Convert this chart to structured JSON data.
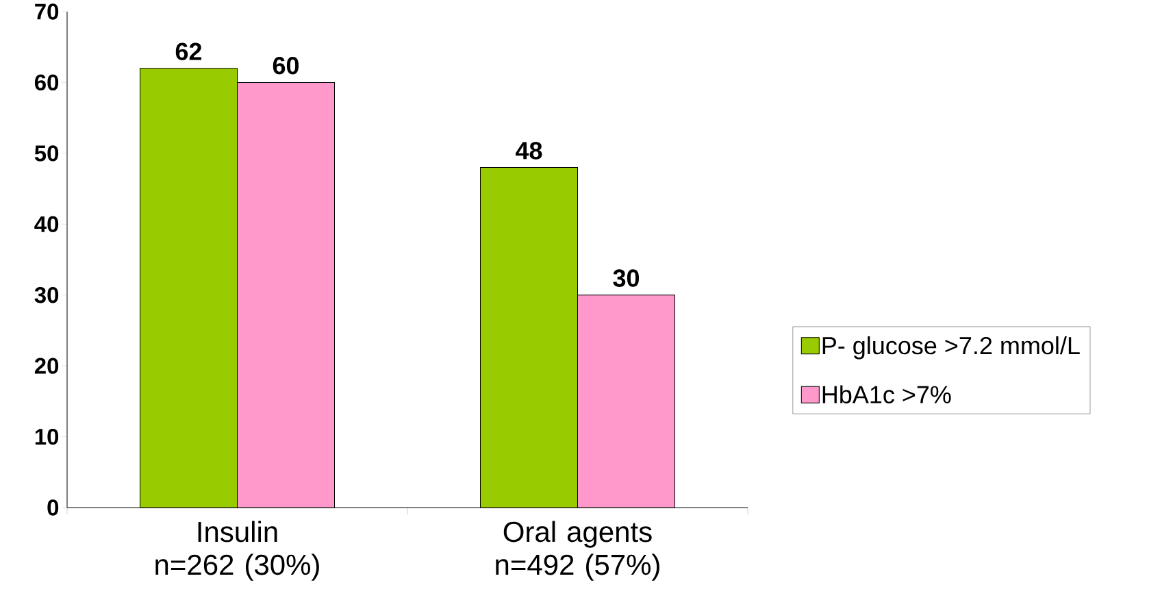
{
  "chart_data": {
    "type": "bar",
    "categories": [
      "Insulin n=262 (30%)",
      "Oral agents n=492 (57%)"
    ],
    "series": [
      {
        "name": "P- glucose >7.2 mmol/L",
        "color": "#99cc00",
        "values": [
          62,
          48
        ]
      },
      {
        "name": "HbA1c >7%",
        "color": "#ff99cc",
        "values": [
          60,
          30
        ]
      }
    ],
    "ylim": [
      0,
      70
    ],
    "yticks": [
      0,
      10,
      20,
      30,
      40,
      50,
      60,
      70
    ],
    "data_labels": true,
    "legend": "right"
  }
}
